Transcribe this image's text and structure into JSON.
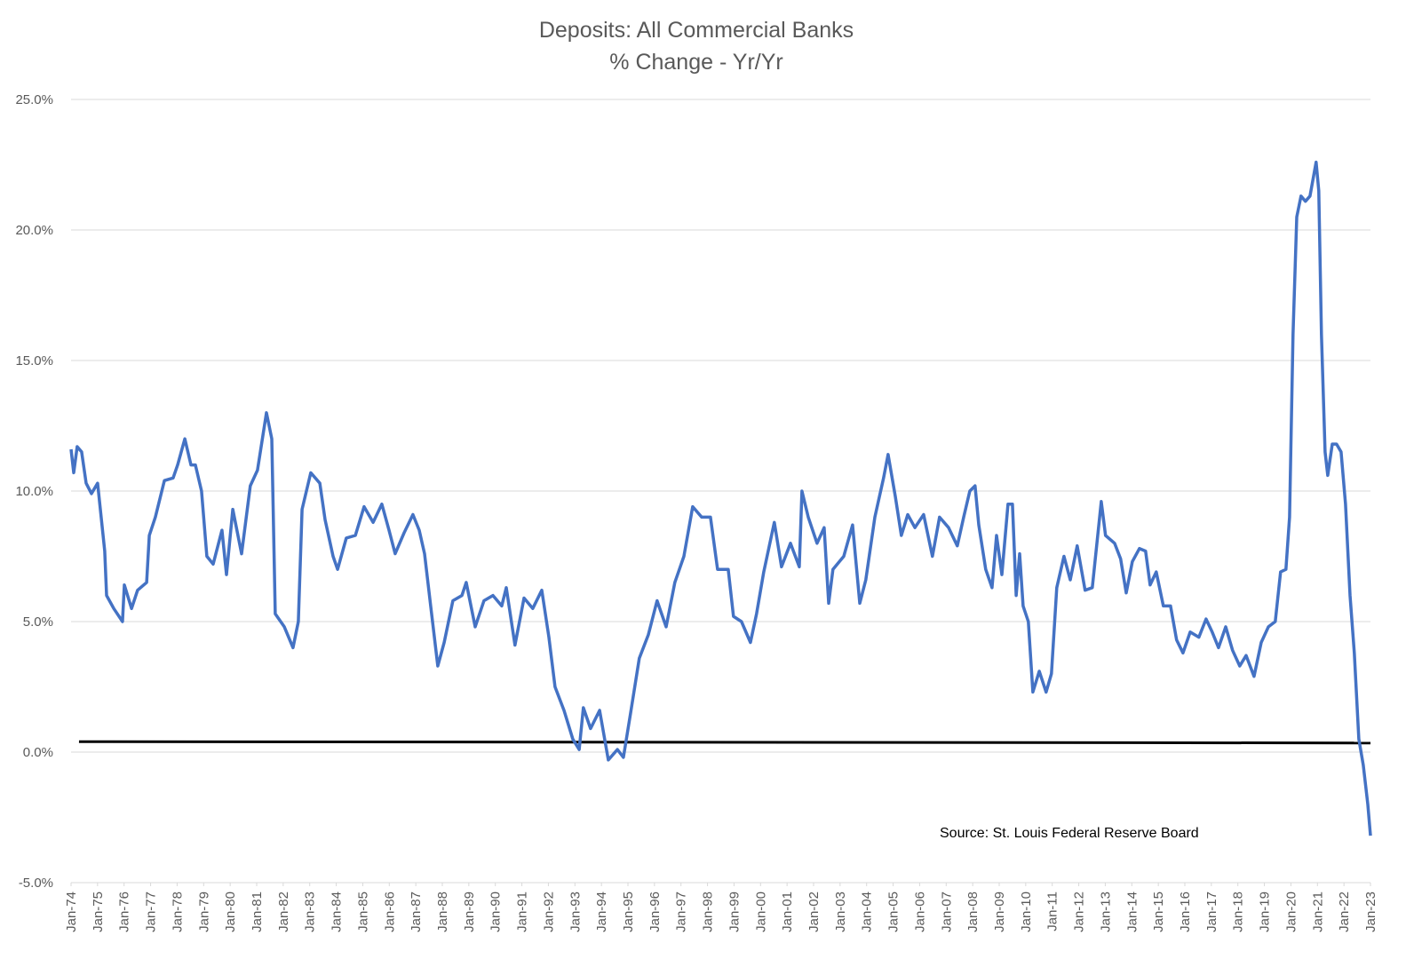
{
  "chart_data": {
    "type": "line",
    "title": "Deposits: All Commercial Banks",
    "subtitle": "% Change - Yr/Yr",
    "annotation": "Source: St. Louis Federal Reserve Board",
    "grid": true,
    "x": [
      1974.0,
      1974.1,
      1974.23,
      1974.4,
      1974.57,
      1974.77,
      1975.0,
      1975.27,
      1975.34,
      1975.61,
      1975.94,
      1976.01,
      1976.28,
      1976.51,
      1976.85,
      1976.95,
      1977.18,
      1977.52,
      1977.85,
      1978.02,
      1978.29,
      1978.52,
      1978.69,
      1978.92,
      1979.12,
      1979.36,
      1979.69,
      1979.86,
      1980.1,
      1980.43,
      1980.76,
      1981.03,
      1981.37,
      1981.57,
      1981.7,
      1982.04,
      1982.37,
      1982.57,
      1982.71,
      1983.04,
      1983.38,
      1983.58,
      1983.88,
      1984.05,
      1984.38,
      1984.72,
      1985.05,
      1985.39,
      1985.72,
      1985.99,
      1986.22,
      1986.56,
      1986.89,
      1987.13,
      1987.33,
      1987.56,
      1987.83,
      1988.07,
      1988.4,
      1988.74,
      1988.9,
      1989.24,
      1989.57,
      1989.91,
      1990.24,
      1990.41,
      1990.74,
      1991.08,
      1991.41,
      1991.75,
      1992.02,
      1992.25,
      1992.59,
      1992.92,
      1993.16,
      1993.32,
      1993.59,
      1993.93,
      1994.26,
      1994.6,
      1994.83,
      1995.1,
      1995.43,
      1995.77,
      1996.1,
      1996.44,
      1996.77,
      1997.11,
      1997.44,
      1997.78,
      1998.11,
      1998.38,
      1998.78,
      1998.98,
      1999.28,
      1999.62,
      1999.85,
      2000.12,
      2000.52,
      2000.79,
      2001.13,
      2001.46,
      2001.56,
      2001.8,
      2002.13,
      2002.4,
      2002.57,
      2002.73,
      2003.14,
      2003.47,
      2003.74,
      2003.97,
      2004.31,
      2004.64,
      2004.81,
      2005.08,
      2005.31,
      2005.55,
      2005.82,
      2006.15,
      2006.48,
      2006.75,
      2007.09,
      2007.42,
      2007.66,
      2007.89,
      2008.09,
      2008.23,
      2008.49,
      2008.73,
      2008.9,
      2009.1,
      2009.33,
      2009.5,
      2009.64,
      2009.77,
      2009.9,
      2010.1,
      2010.27,
      2010.51,
      2010.77,
      2010.97,
      2011.17,
      2011.44,
      2011.68,
      2011.94,
      2012.24,
      2012.51,
      2012.85,
      2013.01,
      2013.35,
      2013.58,
      2013.79,
      2014.02,
      2014.29,
      2014.52,
      2014.69,
      2014.92,
      2015.19,
      2015.46,
      2015.69,
      2015.93,
      2016.2,
      2016.53,
      2016.8,
      2017.03,
      2017.27,
      2017.54,
      2017.8,
      2018.07,
      2018.31,
      2018.61,
      2018.88,
      2019.15,
      2019.41,
      2019.61,
      2019.81,
      2019.95,
      2020.08,
      2020.22,
      2020.38,
      2020.55,
      2020.72,
      2020.95,
      2021.05,
      2021.15,
      2021.29,
      2021.39,
      2021.56,
      2021.72,
      2021.89,
      2022.06,
      2022.23,
      2022.39,
      2022.56,
      2022.73,
      2022.9,
      2023.0
    ],
    "series": [
      {
        "name": "Deposits % Change Yr/Yr",
        "color": "#4472C4",
        "values": [
          11.6,
          10.7,
          11.7,
          11.5,
          10.3,
          9.9,
          10.3,
          7.7,
          6.0,
          5.5,
          5.0,
          6.4,
          5.5,
          6.2,
          6.5,
          8.3,
          9.0,
          10.4,
          10.5,
          11.0,
          12.0,
          11.0,
          11.0,
          10.0,
          7.5,
          7.2,
          8.5,
          6.8,
          9.3,
          7.6,
          10.2,
          10.8,
          13.0,
          12.0,
          5.3,
          4.8,
          4.0,
          5.0,
          9.3,
          10.7,
          10.3,
          8.9,
          7.5,
          7.0,
          8.2,
          8.3,
          9.4,
          8.8,
          9.5,
          8.5,
          7.6,
          8.4,
          9.1,
          8.5,
          7.6,
          5.6,
          3.3,
          4.2,
          5.8,
          6.0,
          6.5,
          4.8,
          5.8,
          6.0,
          5.6,
          6.3,
          4.1,
          5.9,
          5.5,
          6.2,
          4.4,
          2.5,
          1.6,
          0.5,
          0.1,
          1.7,
          0.9,
          1.6,
          -0.3,
          0.1,
          -0.2,
          1.5,
          3.6,
          4.5,
          5.8,
          4.8,
          6.5,
          7.5,
          9.4,
          9.0,
          9.0,
          7.0,
          7.0,
          5.2,
          5.0,
          4.2,
          5.3,
          6.9,
          8.8,
          7.1,
          8.0,
          7.1,
          10.0,
          9.0,
          8.0,
          8.6,
          5.7,
          7.0,
          7.5,
          8.7,
          5.7,
          6.6,
          9.0,
          10.5,
          11.4,
          9.8,
          8.3,
          9.1,
          8.6,
          9.1,
          7.5,
          9.0,
          8.6,
          7.9,
          9.0,
          10.0,
          10.2,
          8.7,
          7.0,
          6.3,
          8.3,
          6.8,
          9.5,
          9.5,
          6.0,
          7.6,
          5.6,
          5.0,
          2.3,
          3.1,
          2.3,
          3.0,
          6.3,
          7.5,
          6.6,
          7.9,
          6.2,
          6.3,
          9.6,
          8.3,
          8.0,
          7.4,
          6.1,
          7.3,
          7.8,
          7.7,
          6.4,
          6.9,
          5.6,
          5.6,
          4.3,
          3.8,
          4.6,
          4.4,
          5.1,
          4.6,
          4.0,
          4.8,
          3.9,
          3.3,
          3.7,
          2.9,
          4.2,
          4.8,
          5.0,
          6.9,
          7.0,
          9.0,
          16.0,
          20.5,
          21.3,
          21.1,
          21.3,
          22.6,
          21.5,
          16.0,
          11.5,
          10.6,
          11.8,
          11.8,
          11.5,
          9.5,
          6.0,
          3.8,
          0.5,
          -0.5,
          -2.0,
          -3.2
        ]
      }
    ],
    "reference_line": {
      "x": [
        1974.3,
        2023.0
      ],
      "y": [
        0.4,
        0.35
      ],
      "color": "#000000"
    },
    "xlim": [
      1974,
      2023
    ],
    "xticks": [
      {
        "value": 1974,
        "label": "Jan-74"
      },
      {
        "value": 1975,
        "label": "Jan-75"
      },
      {
        "value": 1976,
        "label": "Jan-76"
      },
      {
        "value": 1977,
        "label": "Jan-77"
      },
      {
        "value": 1978,
        "label": "Jan-78"
      },
      {
        "value": 1979,
        "label": "Jan-79"
      },
      {
        "value": 1980,
        "label": "Jan-80"
      },
      {
        "value": 1981,
        "label": "Jan-81"
      },
      {
        "value": 1982,
        "label": "Jan-82"
      },
      {
        "value": 1983,
        "label": "Jan-83"
      },
      {
        "value": 1984,
        "label": "Jan-84"
      },
      {
        "value": 1985,
        "label": "Jan-85"
      },
      {
        "value": 1986,
        "label": "Jan-86"
      },
      {
        "value": 1987,
        "label": "Jan-87"
      },
      {
        "value": 1988,
        "label": "Jan-88"
      },
      {
        "value": 1989,
        "label": "Jan-89"
      },
      {
        "value": 1990,
        "label": "Jan-90"
      },
      {
        "value": 1991,
        "label": "Jan-91"
      },
      {
        "value": 1992,
        "label": "Jan-92"
      },
      {
        "value": 1993,
        "label": "Jan-93"
      },
      {
        "value": 1994,
        "label": "Jan-94"
      },
      {
        "value": 1995,
        "label": "Jan-95"
      },
      {
        "value": 1996,
        "label": "Jan-96"
      },
      {
        "value": 1997,
        "label": "Jan-97"
      },
      {
        "value": 1998,
        "label": "Jan-98"
      },
      {
        "value": 1999,
        "label": "Jan-99"
      },
      {
        "value": 2000,
        "label": "Jan-00"
      },
      {
        "value": 2001,
        "label": "Jan-01"
      },
      {
        "value": 2002,
        "label": "Jan-02"
      },
      {
        "value": 2003,
        "label": "Jan-03"
      },
      {
        "value": 2004,
        "label": "Jan-04"
      },
      {
        "value": 2005,
        "label": "Jan-05"
      },
      {
        "value": 2006,
        "label": "Jan-06"
      },
      {
        "value": 2007,
        "label": "Jan-07"
      },
      {
        "value": 2008,
        "label": "Jan-08"
      },
      {
        "value": 2009,
        "label": "Jan-09"
      },
      {
        "value": 2010,
        "label": "Jan-10"
      },
      {
        "value": 2011,
        "label": "Jan-11"
      },
      {
        "value": 2012,
        "label": "Jan-12"
      },
      {
        "value": 2013,
        "label": "Jan-13"
      },
      {
        "value": 2014,
        "label": "Jan-14"
      },
      {
        "value": 2015,
        "label": "Jan-15"
      },
      {
        "value": 2016,
        "label": "Jan-16"
      },
      {
        "value": 2017,
        "label": "Jan-17"
      },
      {
        "value": 2018,
        "label": "Jan-18"
      },
      {
        "value": 2019,
        "label": "Jan-19"
      },
      {
        "value": 2020,
        "label": "Jan-20"
      },
      {
        "value": 2021,
        "label": "Jan-21"
      },
      {
        "value": 2022,
        "label": "Jan-22"
      },
      {
        "value": 2023,
        "label": "Jan-23"
      }
    ],
    "ylim": [
      -5,
      25
    ],
    "yticks": [
      {
        "value": -5,
        "label": "-5.0%"
      },
      {
        "value": 0,
        "label": "0.0%"
      },
      {
        "value": 5,
        "label": "5.0%"
      },
      {
        "value": 10,
        "label": "10.0%"
      },
      {
        "value": 15,
        "label": "15.0%"
      },
      {
        "value": 20,
        "label": "20.0%"
      },
      {
        "value": 25,
        "label": "25.0%"
      }
    ]
  }
}
